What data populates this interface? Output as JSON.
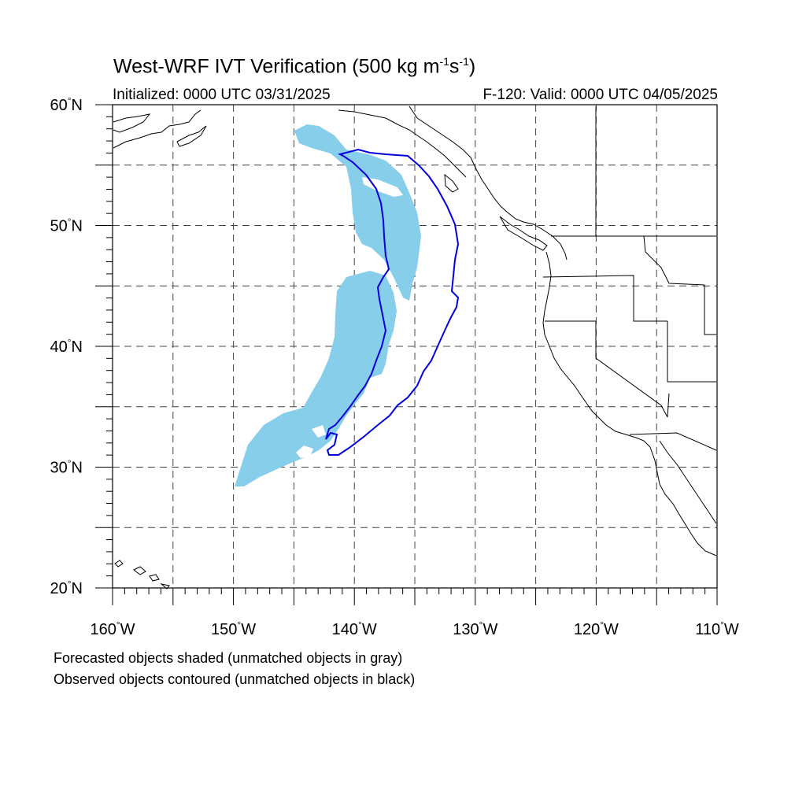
{
  "title": {
    "main": "West-WRF IVT Verification (500 kg m",
    "exp1": "-1",
    "mid": "s",
    "exp2": "-1",
    "end": ")"
  },
  "init_label": "Initialized: 0000 UTC 03/31/2025",
  "valid_label": "F-120: Valid: 0000 UTC 04/05/2025",
  "lat_labels": [
    {
      "deg": "60",
      "hem": "N",
      "value": 60
    },
    {
      "deg": "50",
      "hem": "N",
      "value": 50
    },
    {
      "deg": "40",
      "hem": "N",
      "value": 40
    },
    {
      "deg": "30",
      "hem": "N",
      "value": 30
    },
    {
      "deg": "20",
      "hem": "N",
      "value": 20
    }
  ],
  "lon_labels": [
    {
      "deg": "160",
      "hem": "W",
      "value": -160
    },
    {
      "deg": "150",
      "hem": "W",
      "value": -150
    },
    {
      "deg": "140",
      "hem": "W",
      "value": -140
    },
    {
      "deg": "130",
      "hem": "W",
      "value": -130
    },
    {
      "deg": "120",
      "hem": "W",
      "value": -120
    },
    {
      "deg": "110",
      "hem": "W",
      "value": -110
    }
  ],
  "notes": [
    "Forecasted objects shaded (unmatched objects in gray)",
    "Observed objects contoured (unmatched objects in black)"
  ],
  "colors": {
    "forecast_fill": "#87ceeb",
    "observed_contour": "#0000dd",
    "grid": "#444444",
    "coast": "#000000"
  }
}
